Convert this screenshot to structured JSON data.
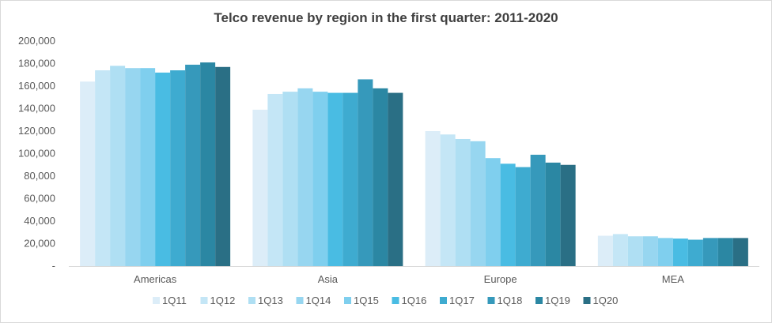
{
  "chart_data": {
    "type": "bar",
    "title": "Telco revenue by region in the first quarter: 2011-2020",
    "categories": [
      "Americas",
      "Asia",
      "Europe",
      "MEA"
    ],
    "ylim": [
      0,
      200000
    ],
    "yticks": [
      "-",
      "20,000",
      "40,000",
      "60,000",
      "80,000",
      "100,000",
      "120,000",
      "140,000",
      "160,000",
      "180,000",
      "200,000"
    ],
    "grid": false,
    "legend_position": "bottom",
    "series": [
      {
        "name": "1Q11",
        "color": "#dcedf8",
        "values": [
          164000,
          139000,
          120000,
          27000
        ]
      },
      {
        "name": "1Q12",
        "color": "#c4e6f6",
        "values": [
          174000,
          153000,
          117000,
          28500
        ]
      },
      {
        "name": "1Q13",
        "color": "#afdff3",
        "values": [
          178000,
          155000,
          113000,
          26500
        ]
      },
      {
        "name": "1Q14",
        "color": "#97d6f0",
        "values": [
          176000,
          158000,
          111000,
          26500
        ]
      },
      {
        "name": "1Q15",
        "color": "#7fcfee",
        "values": [
          176000,
          155000,
          96000,
          25000
        ]
      },
      {
        "name": "1Q16",
        "color": "#49bce3",
        "values": [
          172000,
          154000,
          91000,
          24500
        ]
      },
      {
        "name": "1Q17",
        "color": "#3eabd0",
        "values": [
          174000,
          154000,
          88000,
          23500
        ]
      },
      {
        "name": "1Q18",
        "color": "#3699bb",
        "values": [
          179000,
          166000,
          99000,
          25000
        ]
      },
      {
        "name": "1Q19",
        "color": "#2b87a3",
        "values": [
          181000,
          158000,
          92000,
          25000
        ]
      },
      {
        "name": "1Q20",
        "color": "#2a6f85",
        "values": [
          177000,
          154000,
          90000,
          25000
        ]
      }
    ]
  }
}
